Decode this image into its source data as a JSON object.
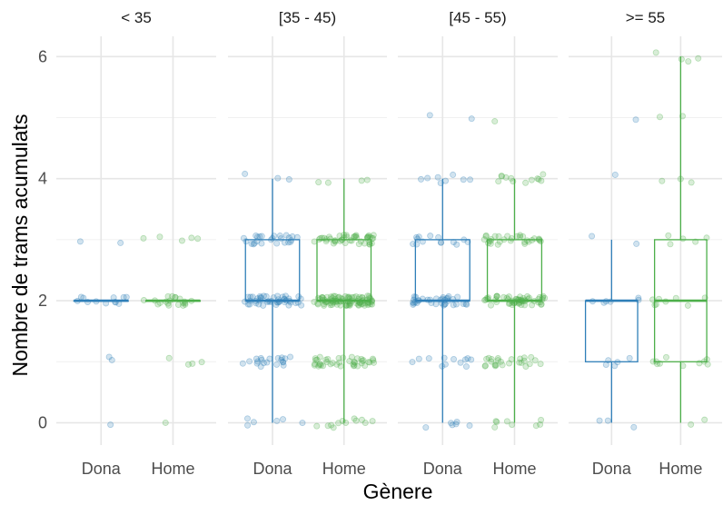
{
  "chart_data": {
    "type": "boxplot",
    "xlabel": "Gènere",
    "ylabel": "Nombre de trams acumulats",
    "ylim": [
      -0.3,
      6.3
    ],
    "y_ticks": [
      0,
      2,
      4,
      6
    ],
    "categories": [
      "Dona",
      "Home"
    ],
    "colors": {
      "Dona": "#2f7fb8",
      "Home": "#4daf4a"
    },
    "facets": [
      {
        "label": "< 35",
        "boxes": [
          {
            "category": "Dona",
            "q1": 2,
            "median": 2,
            "q3": 2,
            "whisker_low": 2,
            "whisker_high": 2
          },
          {
            "category": "Home",
            "q1": 2,
            "median": 2,
            "q3": 2,
            "whisker_low": 2,
            "whisker_high": 2
          }
        ],
        "points": {
          "Dona": [
            [
              0,
              1
            ],
            [
              1,
              2
            ],
            [
              2,
              12
            ],
            [
              3,
              2
            ]
          ],
          "Home": [
            [
              0,
              1
            ],
            [
              1,
              4
            ],
            [
              2,
              20
            ],
            [
              3,
              5
            ]
          ]
        }
      },
      {
        "label": "[35 - 45)",
        "boxes": [
          {
            "category": "Dona",
            "q1": 2,
            "median": 2,
            "q3": 3,
            "whisker_low": 0,
            "whisker_high": 4
          },
          {
            "category": "Home",
            "q1": 2,
            "median": 2,
            "q3": 3,
            "whisker_low": 0,
            "whisker_high": 4
          }
        ],
        "points": {
          "Dona": [
            [
              0,
              6
            ],
            [
              1,
              20
            ],
            [
              2,
              45
            ],
            [
              3,
              25
            ],
            [
              4,
              3
            ]
          ],
          "Home": [
            [
              0,
              12
            ],
            [
              1,
              40
            ],
            [
              2,
              90
            ],
            [
              3,
              45
            ],
            [
              4,
              4
            ]
          ]
        }
      },
      {
        "label": "[45 - 55)",
        "boxes": [
          {
            "category": "Dona",
            "q1": 2,
            "median": 2,
            "q3": 3,
            "whisker_low": 0,
            "whisker_high": 4
          },
          {
            "category": "Home",
            "q1": 2,
            "median": 2,
            "q3": 3,
            "whisker_low": 0,
            "whisker_high": 4
          }
        ],
        "points": {
          "Dona": [
            [
              0,
              6
            ],
            [
              1,
              12
            ],
            [
              2,
              35
            ],
            [
              3,
              14
            ],
            [
              4,
              8
            ],
            [
              5,
              2
            ]
          ],
          "Home": [
            [
              0,
              8
            ],
            [
              1,
              25
            ],
            [
              2,
              55
            ],
            [
              3,
              30
            ],
            [
              4,
              12
            ],
            [
              5,
              1
            ]
          ]
        }
      },
      {
        "label": ">= 55",
        "boxes": [
          {
            "category": "Dona",
            "q1": 1,
            "median": 2,
            "q3": 2,
            "whisker_low": 0,
            "whisker_high": 3
          },
          {
            "category": "Home",
            "q1": 1,
            "median": 2,
            "q3": 3,
            "whisker_low": 0,
            "whisker_high": 6
          }
        ],
        "points": {
          "Dona": [
            [
              0,
              3
            ],
            [
              1,
              5
            ],
            [
              2,
              6
            ],
            [
              3,
              2
            ],
            [
              4,
              1
            ],
            [
              5,
              1
            ]
          ],
          "Home": [
            [
              0,
              2
            ],
            [
              1,
              10
            ],
            [
              2,
              8
            ],
            [
              3,
              5
            ],
            [
              4,
              3
            ],
            [
              5,
              2
            ],
            [
              6,
              4
            ]
          ]
        }
      }
    ]
  }
}
